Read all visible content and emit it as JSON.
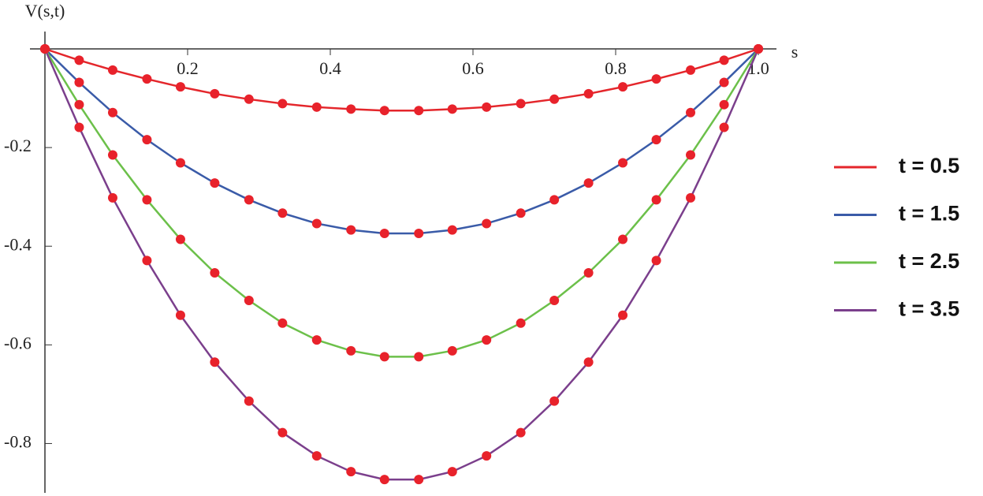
{
  "chart_data": {
    "type": "line",
    "x_label": "s",
    "y_label": "V(s,t)",
    "x": [
      0,
      0.048,
      0.095,
      0.143,
      0.19,
      0.238,
      0.286,
      0.333,
      0.381,
      0.429,
      0.476,
      0.524,
      0.571,
      0.619,
      0.667,
      0.714,
      0.762,
      0.81,
      0.857,
      0.905,
      0.952,
      1
    ],
    "series": [
      {
        "name": "t = 0.5",
        "color": "#e4262b",
        "values": [
          0,
          -0.023,
          -0.043,
          -0.061,
          -0.077,
          -0.091,
          -0.102,
          -0.111,
          -0.118,
          -0.122,
          -0.125,
          -0.125,
          -0.122,
          -0.118,
          -0.111,
          -0.102,
          -0.091,
          -0.077,
          -0.061,
          -0.043,
          -0.023,
          0
        ]
      },
      {
        "name": "t = 1.5",
        "color": "#3a5ba8",
        "values": [
          0,
          -0.068,
          -0.129,
          -0.184,
          -0.231,
          -0.272,
          -0.306,
          -0.333,
          -0.354,
          -0.367,
          -0.374,
          -0.374,
          -0.367,
          -0.354,
          -0.333,
          -0.306,
          -0.272,
          -0.231,
          -0.184,
          -0.129,
          -0.068,
          0
        ]
      },
      {
        "name": "t = 2.5",
        "color": "#6cc04a",
        "values": [
          0,
          -0.113,
          -0.215,
          -0.306,
          -0.386,
          -0.454,
          -0.51,
          -0.556,
          -0.59,
          -0.612,
          -0.624,
          -0.624,
          -0.612,
          -0.59,
          -0.556,
          -0.51,
          -0.454,
          -0.386,
          -0.306,
          -0.215,
          -0.113,
          0
        ]
      },
      {
        "name": "t = 3.5",
        "color": "#7b3f8c",
        "values": [
          0,
          -0.159,
          -0.302,
          -0.429,
          -0.54,
          -0.635,
          -0.714,
          -0.778,
          -0.825,
          -0.857,
          -0.873,
          -0.873,
          -0.857,
          -0.825,
          -0.778,
          -0.714,
          -0.635,
          -0.54,
          -0.429,
          -0.302,
          -0.159,
          0
        ]
      }
    ],
    "marker_color": "#e8222b",
    "xlim": [
      0,
      1
    ],
    "xticks": [
      0.2,
      0.4,
      0.6,
      0.8,
      {
        "value": 1,
        "label": "1.0"
      }
    ],
    "ylim": [
      -0.9,
      0
    ],
    "yticks": [
      -0.2,
      -0.4,
      -0.6,
      -0.8
    ],
    "legend": "right"
  }
}
